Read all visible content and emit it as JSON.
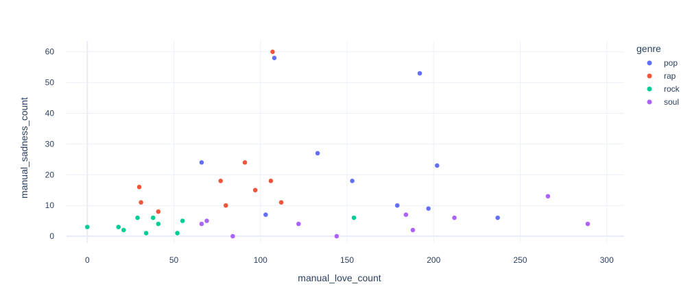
{
  "chart_data": {
    "type": "scatter",
    "xlabel": "manual_love_count",
    "ylabel": "manual_sadness_count",
    "xlim": [
      -12,
      310
    ],
    "ylim": [
      -2.2,
      63.5
    ],
    "xticks": [
      0,
      50,
      100,
      150,
      200,
      250,
      300
    ],
    "yticks": [
      0,
      10,
      20,
      30,
      40,
      50,
      60
    ],
    "grid": true,
    "legend_title": "genre",
    "legend_position": "right",
    "series": [
      {
        "name": "pop",
        "color": "#636efa",
        "points": [
          [
            66,
            24
          ],
          [
            103,
            7
          ],
          [
            108,
            58
          ],
          [
            133,
            27
          ],
          [
            153,
            18
          ],
          [
            179,
            10
          ],
          [
            192,
            53
          ],
          [
            197,
            9
          ],
          [
            202,
            23
          ],
          [
            237,
            6
          ]
        ]
      },
      {
        "name": "rap",
        "color": "#ef553b",
        "points": [
          [
            30,
            16
          ],
          [
            31,
            11
          ],
          [
            41,
            8
          ],
          [
            77,
            18
          ],
          [
            80,
            10
          ],
          [
            91,
            24
          ],
          [
            97,
            15
          ],
          [
            106,
            18
          ],
          [
            107,
            60
          ],
          [
            112,
            11
          ]
        ]
      },
      {
        "name": "rock",
        "color": "#00cc96",
        "points": [
          [
            0,
            3
          ],
          [
            18,
            3
          ],
          [
            21,
            2
          ],
          [
            29,
            6
          ],
          [
            34,
            1
          ],
          [
            38,
            6
          ],
          [
            41,
            4
          ],
          [
            52,
            1
          ],
          [
            55,
            5
          ],
          [
            154,
            6
          ]
        ]
      },
      {
        "name": "soul",
        "color": "#ab63fa",
        "points": [
          [
            66,
            4
          ],
          [
            69,
            5
          ],
          [
            84,
            0
          ],
          [
            122,
            4
          ],
          [
            144,
            0
          ],
          [
            184,
            7
          ],
          [
            188,
            2
          ],
          [
            212,
            6
          ],
          [
            266,
            13
          ],
          [
            289,
            4
          ]
        ]
      }
    ]
  }
}
